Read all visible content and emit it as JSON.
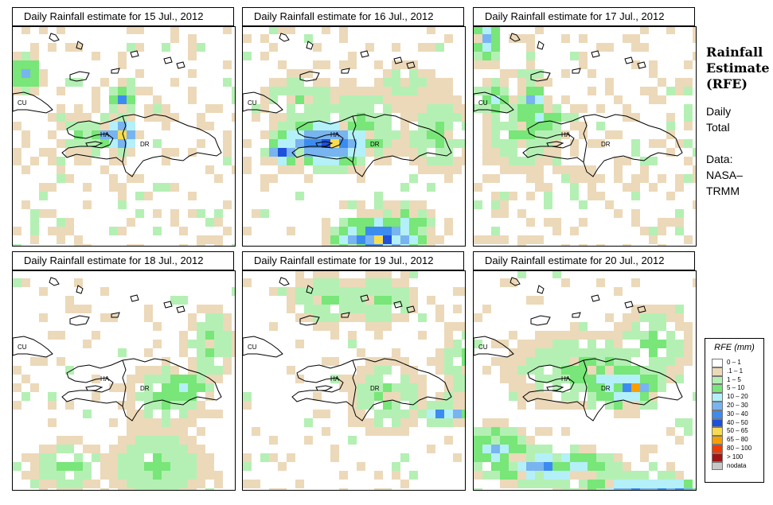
{
  "panels": [
    {
      "title": "Daily Rainfall estimate for  15 Jul., 2012"
    },
    {
      "title": "Daily Rainfall estimate for  16 Jul., 2012"
    },
    {
      "title": "Daily Rainfall estimate for  17 Jul., 2012"
    },
    {
      "title": "Daily Rainfall estimate for  18 Jul., 2012"
    },
    {
      "title": "Daily Rainfall estimate for  19 Jul., 2012"
    },
    {
      "title": "Daily Rainfall estimate for  20 Jul., 2012"
    }
  ],
  "map_labels": {
    "cuba": "CU",
    "haiti": "HA",
    "dominican_republic": "DR"
  },
  "sidebar": {
    "title_lines": [
      "Rainfall",
      "Estimate",
      "(RFE)"
    ],
    "daily_lines": [
      "Daily",
      "Total"
    ],
    "data_lines": [
      "Data:",
      "NASA–",
      "TRMM"
    ]
  },
  "legend": {
    "title": "RFE (mm)",
    "items": [
      {
        "label": "0 – 1",
        "color": "#ffffff"
      },
      {
        "label": ".1 – 1",
        "color": "#ecd9b9"
      },
      {
        "label": "1 – 5",
        "color": "#b4f0b4"
      },
      {
        "label": "5 – 10",
        "color": "#78e678"
      },
      {
        "label": "10 – 20",
        "color": "#b4f0f8"
      },
      {
        "label": "20 – 30",
        "color": "#78b4f0"
      },
      {
        "label": "30 – 40",
        "color": "#3c8cf0"
      },
      {
        "label": "40 – 50",
        "color": "#1e50dc"
      },
      {
        "label": "50 – 65",
        "color": "#f8dc50"
      },
      {
        "label": "65 – 80",
        "color": "#f8a000"
      },
      {
        "label": "80 – 100",
        "color": "#f03c00"
      },
      {
        "label": "> 100",
        "color": "#a01414"
      },
      {
        "label": "nodata",
        "color": "#c8c8c8"
      }
    ]
  }
}
